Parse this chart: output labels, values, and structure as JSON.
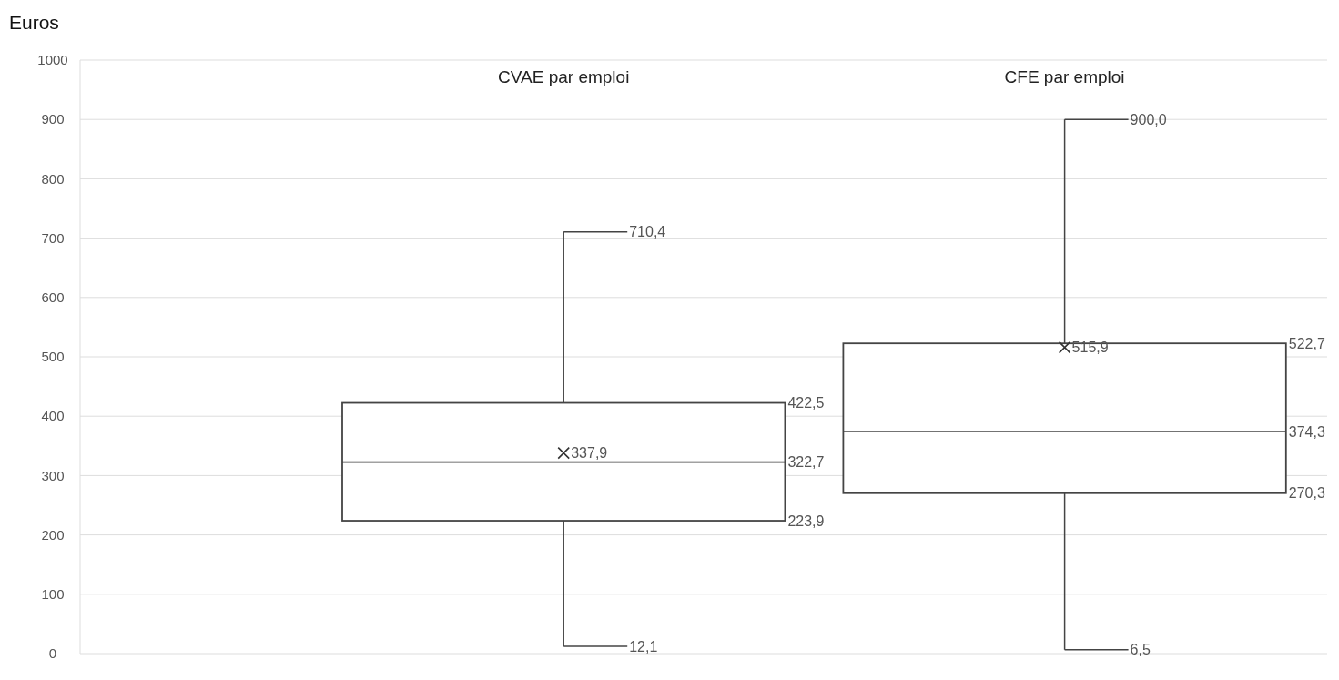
{
  "chart_data": {
    "type": "box",
    "ylabel": "Euros",
    "categories": [
      "CVAE par emploi",
      "CFE par emploi"
    ],
    "boxes": [
      {
        "low": 12.1,
        "q1": 223.9,
        "median": 322.7,
        "q3": 422.5,
        "high": 710.4,
        "mean": 337.9
      },
      {
        "low": 6.5,
        "q1": 270.3,
        "median": 374.3,
        "q3": 522.7,
        "high": 900.0,
        "mean": 515.9
      }
    ],
    "ylim": [
      0,
      1000
    ],
    "yticks": [
      0,
      100,
      200,
      300,
      400,
      500,
      600,
      700,
      800,
      900,
      1000
    ],
    "grid": "y",
    "marker": "cross",
    "annotations": [
      "710,4",
      "422,5",
      "337,9",
      "322,7",
      "223,9",
      "12,1",
      "900,0",
      "522,7",
      "515,9",
      "374,3",
      "270,3",
      "6,5"
    ]
  }
}
